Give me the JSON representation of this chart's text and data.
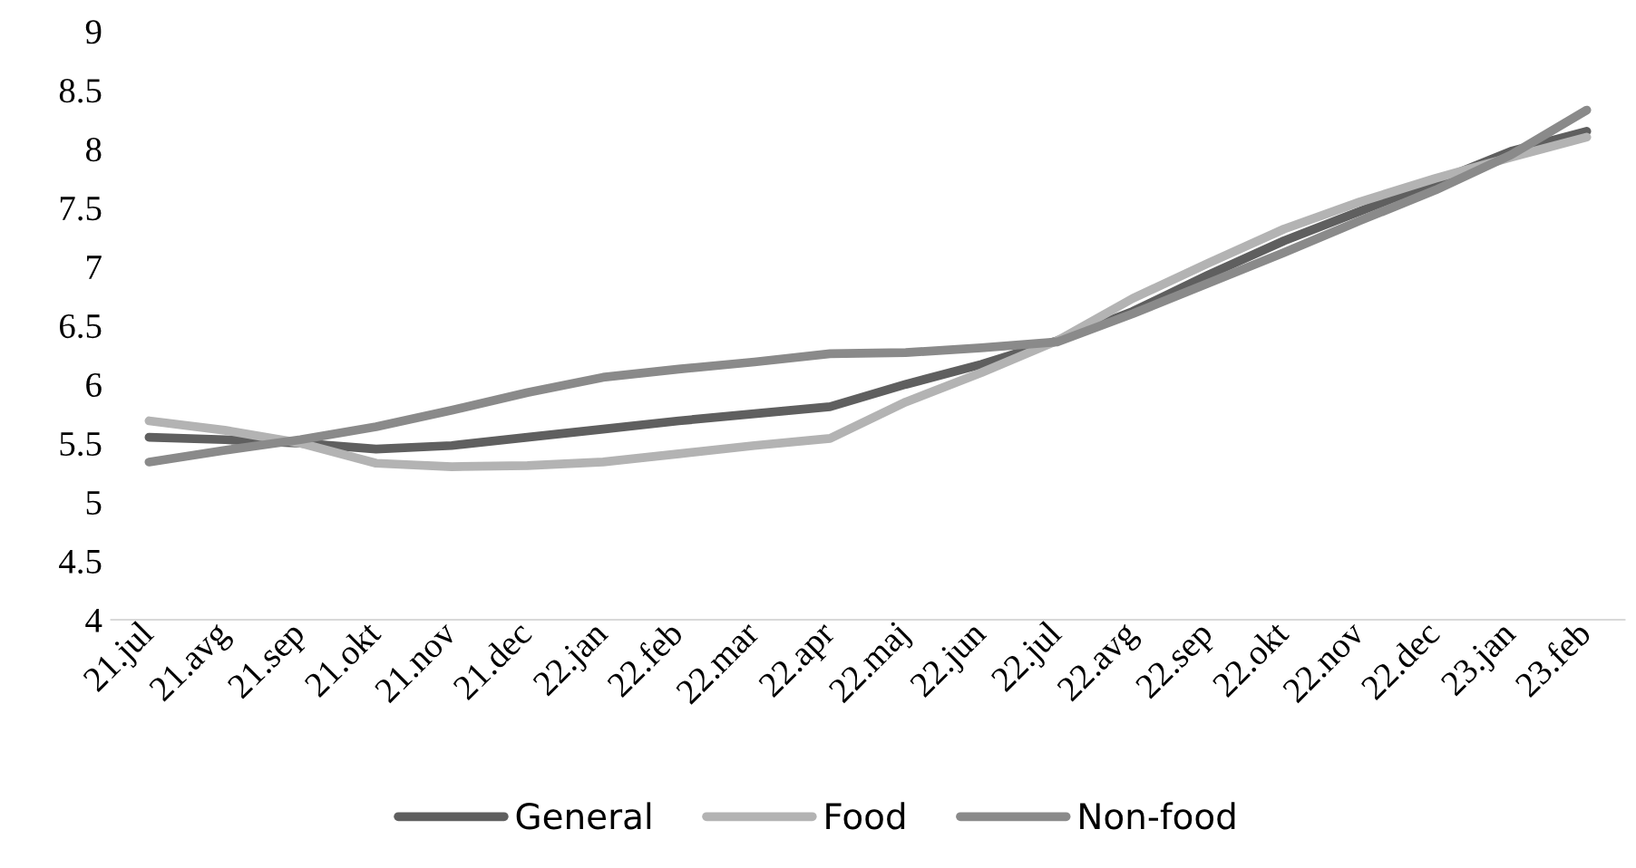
{
  "chart_data": {
    "type": "line",
    "categories": [
      "21.jul",
      "21.avg",
      "21.sep",
      "21.okt",
      "21.nov",
      "21.dec",
      "22.jan",
      "22.feb",
      "22.mar",
      "22.apr",
      "22.maj",
      "22.jun",
      "22.jul",
      "22.avg",
      "22.sep",
      "22.okt",
      "22.nov",
      "22.dec",
      "23.jan",
      "23.feb"
    ],
    "series": [
      {
        "name": "General",
        "color": "#5f5f5f",
        "values": [
          5.55,
          5.53,
          5.5,
          5.45,
          5.48,
          5.55,
          5.62,
          5.69,
          5.75,
          5.81,
          6.0,
          6.17,
          6.37,
          6.62,
          6.93,
          7.22,
          7.47,
          7.72,
          7.98,
          8.15
        ]
      },
      {
        "name": "Food",
        "color": "#b3b3b3",
        "values": [
          5.69,
          5.61,
          5.5,
          5.33,
          5.3,
          5.31,
          5.34,
          5.41,
          5.48,
          5.54,
          5.85,
          6.1,
          6.37,
          6.73,
          7.03,
          7.32,
          7.55,
          7.75,
          7.93,
          8.1
        ]
      },
      {
        "name": "Non-food",
        "color": "#8a8a8a",
        "values": [
          5.34,
          5.44,
          5.53,
          5.64,
          5.78,
          5.93,
          6.06,
          6.13,
          6.19,
          6.26,
          6.27,
          6.31,
          6.36,
          6.6,
          6.86,
          7.12,
          7.39,
          7.65,
          7.95,
          8.33
        ]
      }
    ],
    "ylim": [
      4,
      9
    ],
    "yticks": [
      4,
      4.5,
      5,
      5.5,
      6,
      6.5,
      7,
      7.5,
      8,
      8.5,
      9
    ],
    "grid": false,
    "legend": "bottom",
    "marker": "none",
    "line_style": "solid"
  }
}
